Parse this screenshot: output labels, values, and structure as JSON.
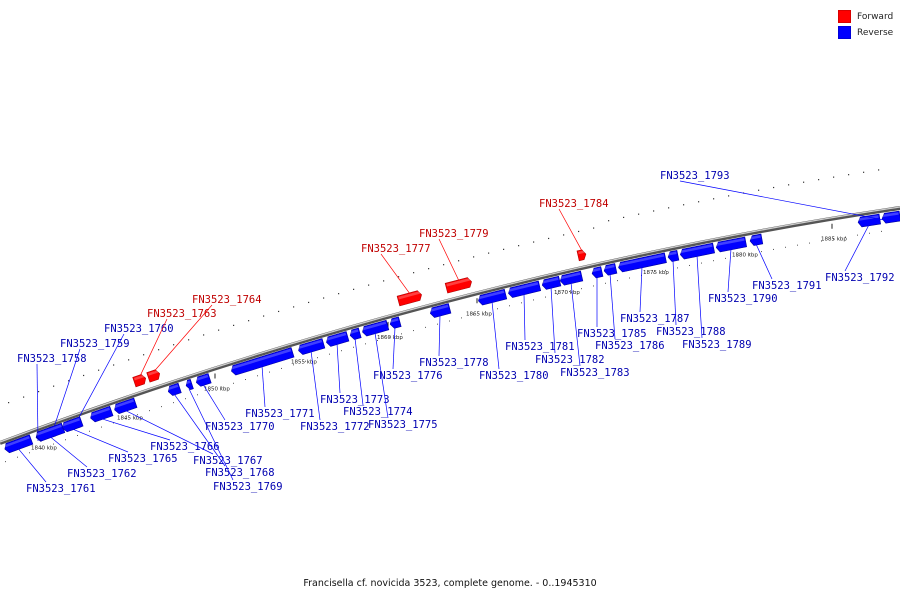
{
  "caption": "Francisella cf. novicida 3523, complete genome. - 0..1945310",
  "legend": [
    {
      "label": "Forward",
      "color": "#ff0000"
    },
    {
      "label": "Reverse",
      "color": "#0000ff"
    }
  ],
  "colors": {
    "forward": "#ff0000",
    "reverse": "#0000ff",
    "axis": "#888888"
  },
  "scale": {
    "unit": "kbp",
    "ticks": [
      {
        "kbp": 1840,
        "label": "1840 kbp"
      },
      {
        "kbp": 1845,
        "label": "1845 kbp"
      },
      {
        "kbp": 1850,
        "label": "1850 kbp"
      },
      {
        "kbp": 1855,
        "label": "1855 kbp"
      },
      {
        "kbp": 1860,
        "label": "1860 kbp"
      },
      {
        "kbp": 1865,
        "label": "1865 kbp"
      },
      {
        "kbp": 1870,
        "label": "1870 kbp"
      },
      {
        "kbp": 1875,
        "label": "1875 kbp"
      },
      {
        "kbp": 1880,
        "label": "1880 kbp"
      },
      {
        "kbp": 1885,
        "label": "1885 kbp"
      }
    ]
  },
  "genes": [
    {
      "name": "FN3523_1758",
      "strand": "reverse"
    },
    {
      "name": "FN3523_1759",
      "strand": "reverse"
    },
    {
      "name": "FN3523_1760",
      "strand": "reverse"
    },
    {
      "name": "FN3523_1761",
      "strand": "reverse"
    },
    {
      "name": "FN3523_1762",
      "strand": "reverse"
    },
    {
      "name": "FN3523_1763",
      "strand": "forward"
    },
    {
      "name": "FN3523_1764",
      "strand": "forward"
    },
    {
      "name": "FN3523_1765",
      "strand": "reverse"
    },
    {
      "name": "FN3523_1766",
      "strand": "reverse"
    },
    {
      "name": "FN3523_1767",
      "strand": "reverse"
    },
    {
      "name": "FN3523_1768",
      "strand": "reverse"
    },
    {
      "name": "FN3523_1769",
      "strand": "reverse"
    },
    {
      "name": "FN3523_1770",
      "strand": "reverse"
    },
    {
      "name": "FN3523_1771",
      "strand": "reverse"
    },
    {
      "name": "FN3523_1772",
      "strand": "reverse"
    },
    {
      "name": "FN3523_1773",
      "strand": "reverse"
    },
    {
      "name": "FN3523_1774",
      "strand": "reverse"
    },
    {
      "name": "FN3523_1775",
      "strand": "reverse"
    },
    {
      "name": "FN3523_1776",
      "strand": "reverse"
    },
    {
      "name": "FN3523_1777",
      "strand": "forward"
    },
    {
      "name": "FN3523_1778",
      "strand": "reverse"
    },
    {
      "name": "FN3523_1779",
      "strand": "forward"
    },
    {
      "name": "FN3523_1780",
      "strand": "reverse"
    },
    {
      "name": "FN3523_1781",
      "strand": "reverse"
    },
    {
      "name": "FN3523_1782",
      "strand": "reverse"
    },
    {
      "name": "FN3523_1783",
      "strand": "reverse"
    },
    {
      "name": "FN3523_1784",
      "strand": "forward"
    },
    {
      "name": "FN3523_1785",
      "strand": "reverse"
    },
    {
      "name": "FN3523_1786",
      "strand": "reverse"
    },
    {
      "name": "FN3523_1787",
      "strand": "reverse"
    },
    {
      "name": "FN3523_1788",
      "strand": "reverse"
    },
    {
      "name": "FN3523_1789",
      "strand": "reverse"
    },
    {
      "name": "FN3523_1790",
      "strand": "reverse"
    },
    {
      "name": "FN3523_1791",
      "strand": "reverse"
    },
    {
      "name": "FN3523_1792",
      "strand": "reverse"
    },
    {
      "name": "FN3523_1793",
      "strand": "reverse"
    }
  ]
}
